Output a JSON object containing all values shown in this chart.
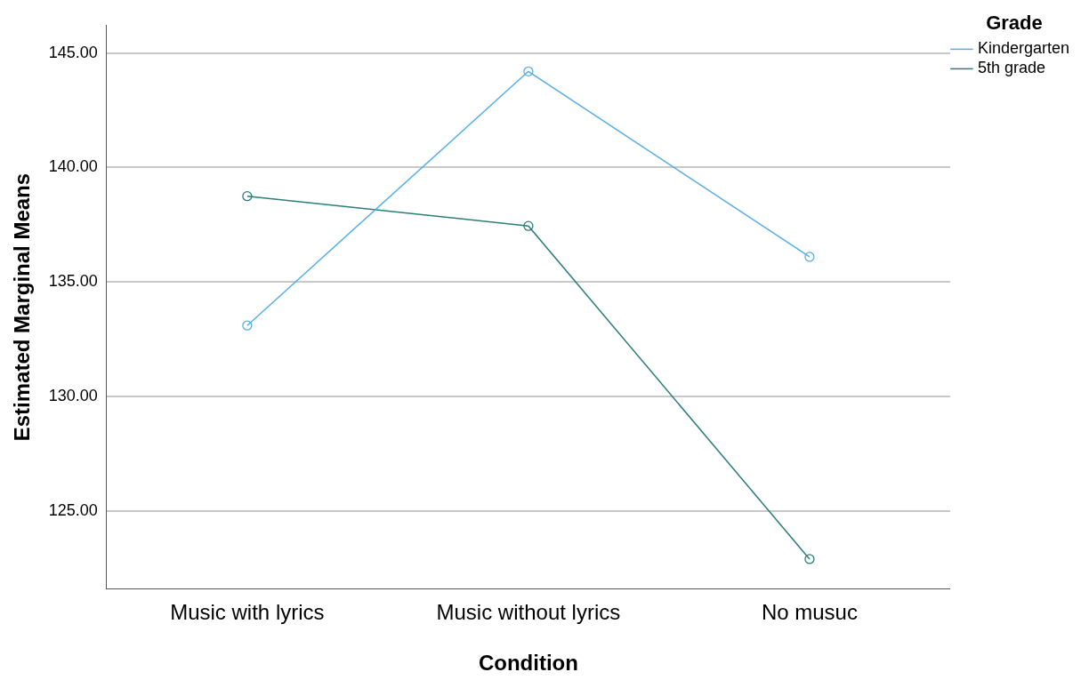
{
  "chart_data": {
    "type": "line",
    "xlabel": "Condition",
    "ylabel": "Estimated Marginal Means",
    "legend_title": "Grade",
    "categories": [
      "Music with lyrics",
      "Music without lyrics",
      "No musuc"
    ],
    "series": [
      {
        "name": "Kindergarten",
        "color": "#56aee6",
        "values": [
          133.1,
          144.2,
          136.1
        ]
      },
      {
        "name": "5th grade",
        "color": "#2b7d78",
        "values": [
          138.75,
          137.45,
          122.9
        ]
      }
    ],
    "ylim": [
      121.6,
      146.2
    ],
    "yticks": [
      {
        "value": 125,
        "label": "125.00"
      },
      {
        "value": 130,
        "label": "130.00"
      },
      {
        "value": 135,
        "label": "135.00"
      },
      {
        "value": 140,
        "label": "140.00"
      },
      {
        "value": 145,
        "label": "145.00"
      }
    ],
    "grid": "y",
    "legend": "top right",
    "marker": "circle",
    "line_style": "solid"
  }
}
